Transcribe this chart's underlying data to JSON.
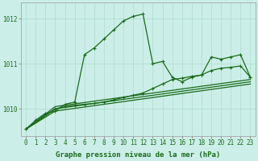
{
  "bg_color": "#cceee8",
  "grid_color": "#aaddcc",
  "line_color": "#1a6b1a",
  "marker_color": "#1a6b1a",
  "xlabel": "Graphe pression niveau de la mer (hPa)",
  "xlabel_color": "#1a6b1a",
  "ylabel_ticks": [
    1010,
    1011,
    1012
  ],
  "xlim": [
    -0.5,
    23.5
  ],
  "ylim": [
    1009.4,
    1012.35
  ],
  "series": [
    {
      "x": [
        0,
        1,
        2,
        3,
        4,
        5,
        6,
        7,
        8,
        9,
        10,
        11,
        12,
        13,
        14,
        15,
        16,
        17,
        18,
        19,
        20,
        21,
        22,
        23
      ],
      "y": [
        1009.55,
        1009.75,
        1009.9,
        1009.95,
        1010.1,
        1010.15,
        1011.2,
        1011.35,
        1011.55,
        1011.75,
        1011.95,
        1012.05,
        1012.1,
        1011.0,
        1011.05,
        1010.7,
        1010.6,
        1010.7,
        1010.75,
        1011.15,
        1011.1,
        1011.15,
        1011.2,
        1010.7
      ],
      "marker": true,
      "linewidth": 0.9
    },
    {
      "x": [
        0,
        3,
        4,
        5,
        6,
        7,
        8,
        9,
        10,
        11,
        12,
        13,
        14,
        15,
        16,
        17,
        18,
        19,
        20,
        21,
        22,
        23
      ],
      "y": [
        1009.55,
        1010.0,
        1010.05,
        1010.08,
        1010.1,
        1010.12,
        1010.15,
        1010.2,
        1010.25,
        1010.3,
        1010.35,
        1010.45,
        1010.55,
        1010.65,
        1010.68,
        1010.72,
        1010.75,
        1010.85,
        1010.9,
        1010.92,
        1010.95,
        1010.7
      ],
      "marker": true,
      "linewidth": 0.9
    },
    {
      "x": [
        0,
        3,
        23
      ],
      "y": [
        1009.55,
        1010.05,
        1010.65
      ],
      "marker": false,
      "linewidth": 0.9
    },
    {
      "x": [
        0,
        3,
        23
      ],
      "y": [
        1009.55,
        1010.0,
        1010.6
      ],
      "marker": false,
      "linewidth": 0.9
    },
    {
      "x": [
        0,
        3,
        23
      ],
      "y": [
        1009.55,
        1009.95,
        1010.55
      ],
      "marker": false,
      "linewidth": 0.9
    }
  ],
  "tick_fontsize": 5.5,
  "label_fontsize": 6.5
}
